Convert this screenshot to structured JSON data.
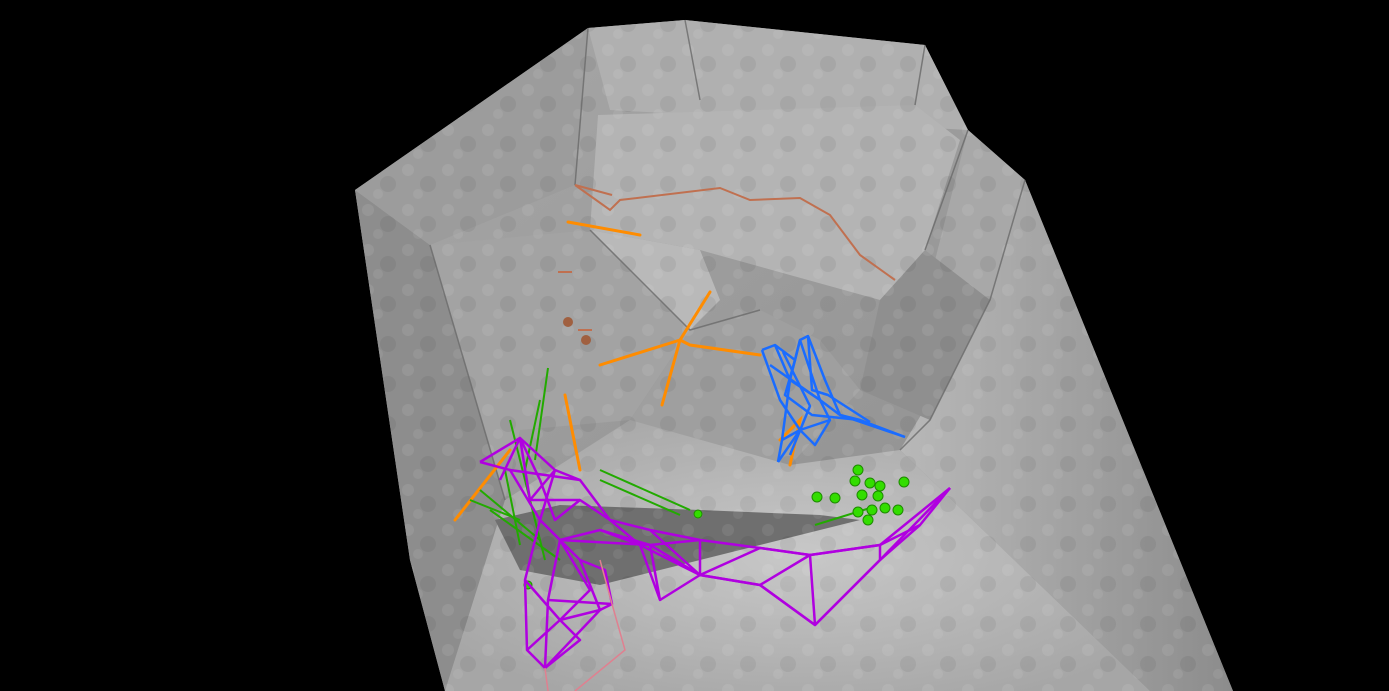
{
  "scene": {
    "background": "#000000",
    "rock_colors": {
      "light": "#c4c4c4",
      "mid": "#9a9a9a",
      "dark": "#6e6e6e",
      "floor": "#b5b5b5"
    },
    "overlays": [
      {
        "name": "orange-edge-path",
        "color": "#ff8c00"
      },
      {
        "name": "brown-contour",
        "color": "#c07050"
      },
      {
        "name": "blue-wireframe-mesh",
        "color": "#1a6cff"
      },
      {
        "name": "purple-wireframe-mesh",
        "color": "#b000e0"
      },
      {
        "name": "green-line-cluster",
        "color": "#22aa00"
      },
      {
        "name": "green-point-cluster",
        "color": "#33dd00"
      },
      {
        "name": "pink-outline",
        "color": "#e08090"
      }
    ]
  }
}
